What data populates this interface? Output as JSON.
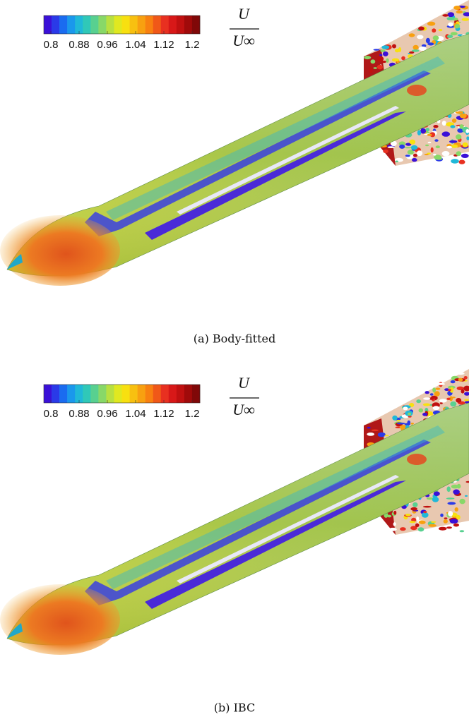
{
  "panels": [
    {
      "colorbar": {
        "range": [
          0.8,
          1.2
        ],
        "ticks": [
          0.8,
          0.88,
          0.96,
          1.04,
          1.12,
          1.2
        ]
      },
      "variable": {
        "numerator": "U",
        "denominator": "U∞"
      },
      "caption": "(a) Body-fitted"
    },
    {
      "colorbar": {
        "range": [
          0.8,
          1.2
        ],
        "ticks": [
          0.8,
          0.88,
          0.96,
          1.04,
          1.12,
          1.2
        ]
      },
      "variable": {
        "numerator": "U",
        "denominator": "U∞"
      },
      "caption": "(b) IBC"
    }
  ]
}
